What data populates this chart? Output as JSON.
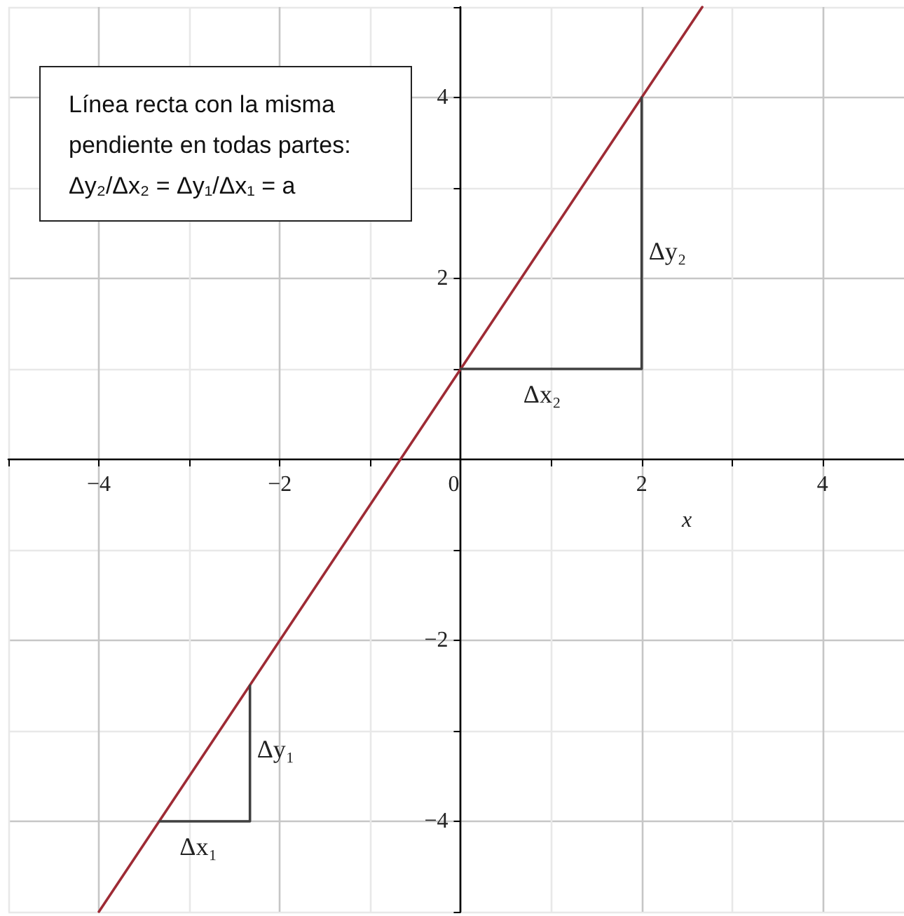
{
  "chart_data": {
    "type": "line",
    "annotations": [
      "Línea recta con la misma pendiente en todas partes: Δy₂/Δx₂ = Δy₁/Δx₁ = a",
      {
        "text": "Δy₂",
        "x": 2,
        "y": 2.3
      },
      {
        "text": "Δx₂",
        "x": 0.9,
        "y": 1
      },
      {
        "text": "Δy₁",
        "x": -2.33,
        "y": -3.2
      },
      {
        "text": "Δx₁",
        "x": -2.9,
        "y": -4
      }
    ],
    "xlabel": "x",
    "series": [
      {
        "color": "#9e2b35",
        "x": [
          -4,
          0,
          2,
          2.67
        ],
        "values": [
          -5,
          1,
          4,
          5
        ]
      },
      {
        "color": "#404040",
        "x": [
          0,
          2,
          2
        ],
        "values": [
          1,
          1,
          4
        ]
      },
      {
        "color": "#404040",
        "x": [
          -3.33,
          -2.33,
          -2.33
        ],
        "values": [
          -4,
          -4,
          -2.5
        ]
      }
    ],
    "xlim": [
      -5,
      4.9
    ],
    "ylim": [
      -5,
      5
    ],
    "xticks": [
      {
        "value": -5,
        "label": null
      },
      -4,
      {
        "value": -3,
        "label": null
      },
      -2,
      {
        "value": -1,
        "label": null
      },
      0,
      {
        "value": 1,
        "label": null
      },
      2,
      {
        "value": 3,
        "label": null
      },
      4
    ],
    "yticks": [
      {
        "value": -5,
        "label": null
      },
      -4,
      {
        "value": -3,
        "label": null
      },
      -2,
      {
        "value": -1,
        "label": null
      },
      {
        "value": 0,
        "label": null
      },
      {
        "value": 1,
        "label": null
      },
      2,
      {
        "value": 3,
        "label": null
      },
      4,
      {
        "value": 5,
        "label": null
      }
    ],
    "grid": true,
    "marker": "none"
  }
}
